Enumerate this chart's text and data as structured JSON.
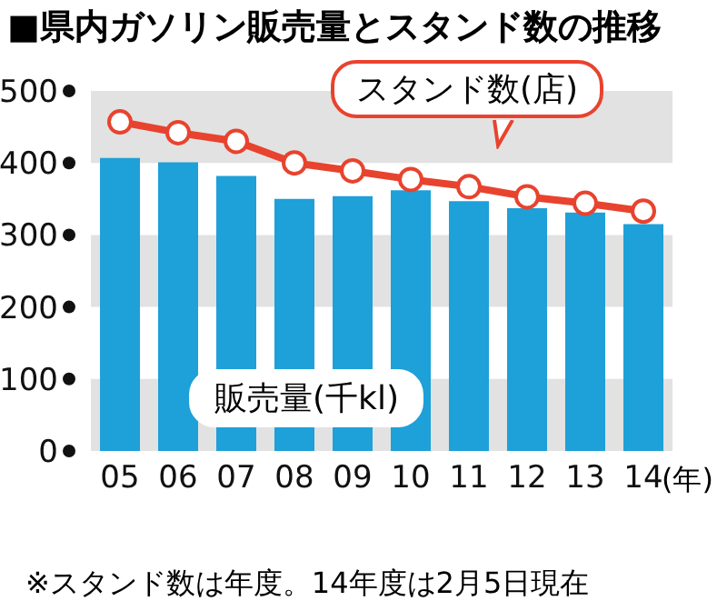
{
  "chart_data": {
    "type": "bar",
    "title": "■県内ガソリン販売量とスタンド数の推移",
    "categories": [
      "05",
      "06",
      "07",
      "08",
      "09",
      "10",
      "11",
      "12",
      "13",
      "14"
    ],
    "xlabel": "(年)",
    "series": [
      {
        "name": "販売量(千kl)",
        "color": "#1ea0d8",
        "values": [
          407,
          401,
          382,
          350,
          354,
          362,
          347,
          337,
          331,
          315
        ]
      },
      {
        "name": "スタンド数(店)",
        "type": "line",
        "color": "#e8432e",
        "marker": "circle",
        "values": [
          457,
          442,
          430,
          400,
          389,
          377,
          367,
          353,
          344,
          333
        ]
      }
    ],
    "ylim": [
      0,
      500
    ],
    "yticks": [
      0,
      100,
      200,
      300,
      400,
      500
    ],
    "bands": [
      {
        "axis": "y",
        "from": 400,
        "to": 500,
        "color": "#e2e2e2"
      },
      {
        "axis": "y",
        "from": 200,
        "to": 300,
        "color": "#e2e2e2"
      },
      {
        "axis": "y",
        "from": 0,
        "to": 100,
        "color": "#e2e2e2"
      }
    ],
    "annotations": [
      "※スタンド数は年度。14年度は2月5日現在"
    ]
  }
}
